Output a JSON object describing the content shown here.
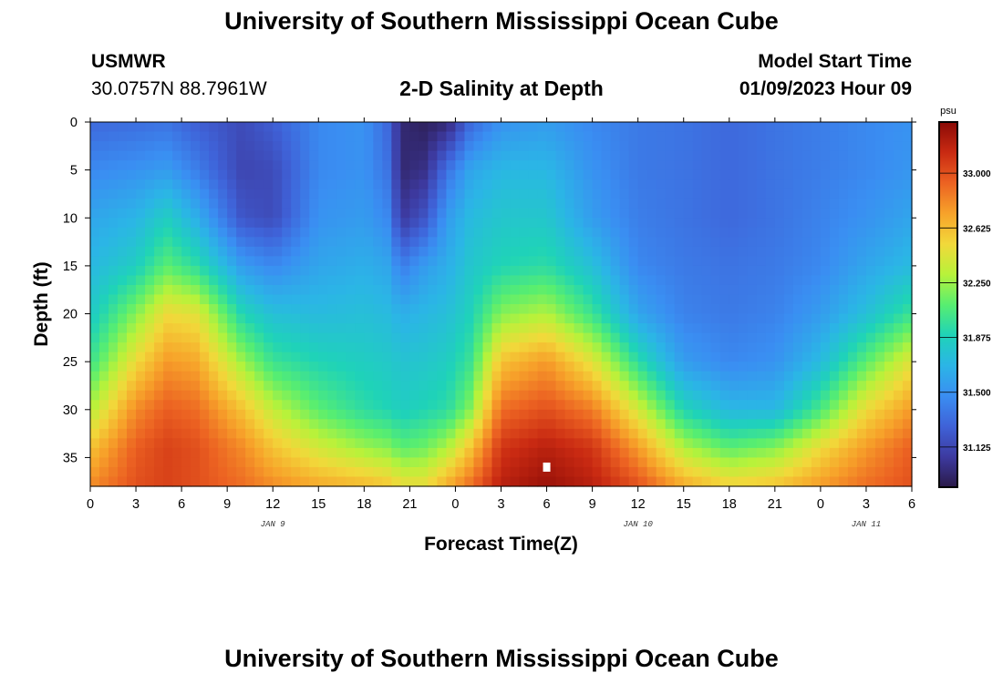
{
  "header": {
    "title": "University of Southern Mississippi Ocean Cube",
    "station": "USMWR",
    "coordinates": "30.0757N  88.7961W",
    "plot_title": "2-D Salinity at Depth",
    "model_start_label": "Model Start Time",
    "model_start_value": "01/09/2023 Hour 09"
  },
  "footer": {
    "title": "University of Southern Mississippi Ocean Cube"
  },
  "colors": {
    "colormap": [
      "#2a1a48",
      "#3d3aa0",
      "#3f62d8",
      "#3a8ef2",
      "#2bb5e6",
      "#1fd3b8",
      "#58ee70",
      "#b8f23a",
      "#f2d83a",
      "#f7a22a",
      "#ec6222",
      "#c92a12",
      "#8a0a06"
    ],
    "marker": "#ffffff"
  },
  "chart_data": {
    "type": "heatmap",
    "xlabel": "Forecast Time(Z)",
    "ylabel": "Depth (ft)",
    "x_ticks": [
      "0",
      "3",
      "6",
      "9",
      "12",
      "15",
      "18",
      "21",
      "0",
      "3",
      "6",
      "9",
      "12",
      "15",
      "18",
      "21",
      "0",
      "3",
      "6"
    ],
    "date_labels": [
      {
        "label": "JAN 9",
        "at_hour": 12
      },
      {
        "label": "JAN 10",
        "at_hour": 36
      },
      {
        "label": "JAN 11",
        "at_hour": 51
      }
    ],
    "x_range_hours": [
      0,
      54
    ],
    "y_ticks": [
      "0",
      "5",
      "10",
      "15",
      "20",
      "25",
      "30",
      "35"
    ],
    "y_range": [
      0,
      38
    ],
    "y_inverted": true,
    "colorbar": {
      "unit": "psu",
      "ticks": [
        "31.125",
        "31.500",
        "31.875",
        "32.250",
        "32.625",
        "33.000"
      ],
      "range": [
        30.85,
        33.35
      ]
    },
    "marker_point": {
      "hour": 30,
      "depth": 36
    },
    "salinity_profiles": [
      {
        "hour": 0,
        "depths": [
          0,
          5,
          10,
          15,
          20,
          25,
          30,
          34,
          38
        ],
        "values": [
          31.3,
          31.45,
          31.6,
          31.7,
          31.82,
          32.0,
          32.3,
          32.6,
          32.8
        ]
      },
      {
        "hour": 3,
        "depths": [
          0,
          5,
          10,
          15,
          20,
          25,
          30,
          34,
          38
        ],
        "values": [
          31.32,
          31.5,
          31.68,
          31.85,
          32.2,
          32.5,
          32.8,
          32.95,
          33.0
        ]
      },
      {
        "hour": 5,
        "depths": [
          0,
          5,
          10,
          15,
          20,
          25,
          30,
          34,
          38
        ],
        "values": [
          31.35,
          31.55,
          31.85,
          32.1,
          32.5,
          32.75,
          32.95,
          33.05,
          33.05
        ]
      },
      {
        "hour": 7,
        "depths": [
          0,
          5,
          10,
          15,
          20,
          25,
          30,
          34,
          38
        ],
        "values": [
          31.25,
          31.4,
          31.65,
          31.95,
          32.45,
          32.7,
          32.9,
          33.0,
          33.0
        ]
      },
      {
        "hour": 10,
        "depths": [
          0,
          5,
          10,
          15,
          20,
          25,
          30,
          34,
          38
        ],
        "values": [
          31.15,
          31.12,
          31.2,
          31.55,
          31.9,
          32.25,
          32.6,
          32.8,
          32.9
        ]
      },
      {
        "hour": 12,
        "depths": [
          0,
          5,
          10,
          15,
          20,
          25,
          30,
          34,
          38
        ],
        "values": [
          31.25,
          31.15,
          31.15,
          31.45,
          31.75,
          32.0,
          32.35,
          32.6,
          32.8
        ]
      },
      {
        "hour": 15,
        "depths": [
          0,
          5,
          10,
          15,
          20,
          25,
          30,
          34,
          38
        ],
        "values": [
          31.45,
          31.45,
          31.5,
          31.6,
          31.72,
          31.9,
          32.1,
          32.4,
          32.7
        ]
      },
      {
        "hour": 18,
        "depths": [
          0,
          5,
          10,
          15,
          20,
          25,
          30,
          34,
          38
        ],
        "values": [
          31.5,
          31.5,
          31.55,
          31.65,
          31.75,
          31.85,
          31.95,
          32.25,
          32.65
        ]
      },
      {
        "hour": 19.5,
        "depths": [
          0,
          5,
          10,
          15,
          20,
          25,
          30,
          34,
          38
        ],
        "values": [
          31.3,
          31.35,
          31.45,
          31.6,
          31.72,
          31.82,
          31.9,
          32.2,
          32.6
        ]
      },
      {
        "hour": 20.5,
        "depths": [
          0,
          5,
          10,
          15,
          20,
          25,
          30,
          34,
          38
        ],
        "values": [
          30.95,
          30.95,
          31.05,
          31.4,
          31.65,
          31.78,
          31.85,
          32.1,
          32.5
        ]
      },
      {
        "hour": 22,
        "depths": [
          0,
          5,
          10,
          15,
          20,
          25,
          30,
          34,
          38
        ],
        "values": [
          30.9,
          31.0,
          31.2,
          31.55,
          31.7,
          31.8,
          31.9,
          32.15,
          32.5
        ]
      },
      {
        "hour": 23.5,
        "depths": [
          0,
          5,
          10,
          15,
          20,
          25,
          30,
          34,
          38
        ],
        "values": [
          30.95,
          31.35,
          31.55,
          31.65,
          31.75,
          31.85,
          31.95,
          32.3,
          32.7
        ]
      },
      {
        "hour": 25,
        "depths": [
          0,
          5,
          10,
          15,
          20,
          25,
          30,
          34,
          38
        ],
        "values": [
          31.3,
          31.6,
          31.72,
          31.8,
          31.88,
          32.0,
          32.2,
          32.6,
          32.9
        ]
      },
      {
        "hour": 27,
        "depths": [
          0,
          5,
          10,
          15,
          20,
          25,
          30,
          34,
          38
        ],
        "values": [
          31.5,
          31.7,
          31.8,
          31.9,
          32.2,
          32.6,
          32.9,
          33.1,
          33.2
        ]
      },
      {
        "hour": 30,
        "depths": [
          0,
          5,
          10,
          15,
          20,
          25,
          30,
          34,
          38
        ],
        "values": [
          31.55,
          31.7,
          31.8,
          31.95,
          32.3,
          32.75,
          33.0,
          33.2,
          33.3
        ]
      },
      {
        "hour": 33,
        "depths": [
          0,
          5,
          10,
          15,
          20,
          25,
          30,
          34,
          38
        ],
        "values": [
          31.45,
          31.5,
          31.55,
          31.75,
          32.0,
          32.45,
          32.85,
          33.1,
          33.2
        ]
      },
      {
        "hour": 36,
        "depths": [
          0,
          5,
          10,
          15,
          20,
          25,
          30,
          34,
          38
        ],
        "values": [
          31.38,
          31.38,
          31.4,
          31.45,
          31.6,
          31.95,
          32.4,
          32.75,
          33.0
        ]
      },
      {
        "hour": 39,
        "depths": [
          0,
          5,
          10,
          15,
          20,
          25,
          30,
          34,
          38
        ],
        "values": [
          31.35,
          31.35,
          31.35,
          31.38,
          31.42,
          31.55,
          31.9,
          32.3,
          32.7
        ]
      },
      {
        "hour": 42,
        "depths": [
          0,
          5,
          10,
          15,
          20,
          25,
          30,
          34,
          38
        ],
        "values": [
          31.3,
          31.3,
          31.3,
          31.35,
          31.38,
          31.45,
          31.7,
          32.1,
          32.55
        ]
      },
      {
        "hour": 45,
        "depths": [
          0,
          5,
          10,
          15,
          20,
          25,
          30,
          34,
          38
        ],
        "values": [
          31.35,
          31.35,
          31.35,
          31.38,
          31.42,
          31.5,
          31.7,
          32.2,
          32.6
        ]
      },
      {
        "hour": 48,
        "depths": [
          0,
          5,
          10,
          15,
          20,
          25,
          30,
          34,
          38
        ],
        "values": [
          31.4,
          31.4,
          31.42,
          31.45,
          31.55,
          31.72,
          32.05,
          32.5,
          32.75
        ]
      },
      {
        "hour": 51,
        "depths": [
          0,
          5,
          10,
          15,
          20,
          25,
          30,
          34,
          38
        ],
        "values": [
          31.45,
          31.45,
          31.5,
          31.6,
          31.75,
          32.1,
          32.5,
          32.75,
          32.9
        ]
      },
      {
        "hour": 54,
        "depths": [
          0,
          5,
          10,
          15,
          20,
          25,
          30,
          34,
          38
        ],
        "values": [
          31.5,
          31.52,
          31.6,
          31.72,
          32.0,
          32.45,
          32.75,
          32.95,
          33.0
        ]
      }
    ]
  }
}
